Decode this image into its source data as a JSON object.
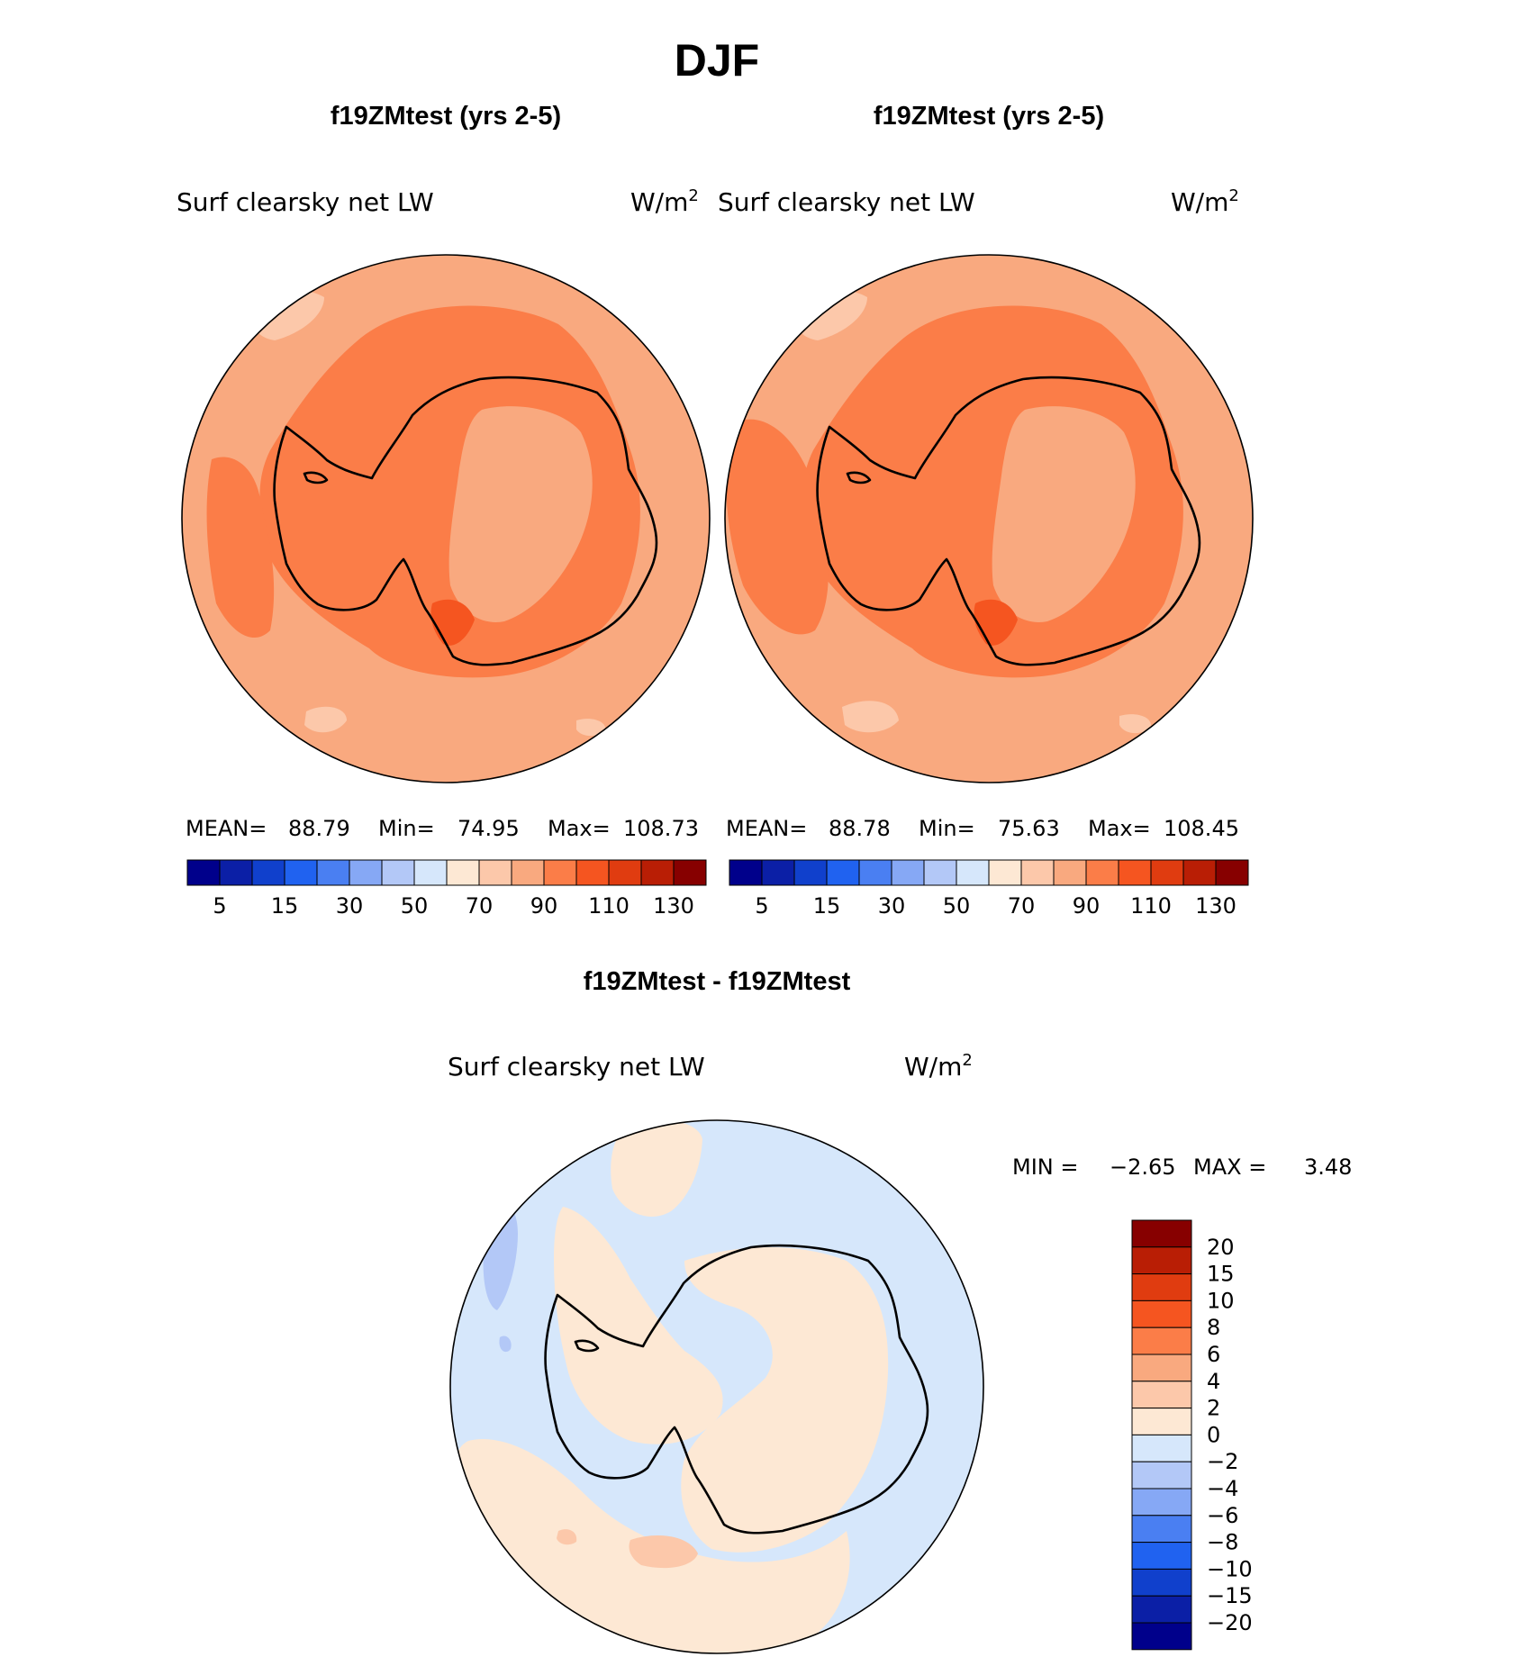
{
  "figure": {
    "season": "DJF",
    "colors": {
      "pos_cbar": [
        "#00008b",
        "#0b1fa6",
        "#1040cc",
        "#2062f0",
        "#4a7ff2",
        "#86a8f5",
        "#b3c8f7",
        "#d6e7fb",
        "#fde8d4",
        "#fcc8aa",
        "#f9a97f",
        "#fb7d48",
        "#f55520",
        "#e03c10",
        "#b91e05",
        "#870000"
      ],
      "diff_cbar": [
        "#00008b",
        "#0b1fa6",
        "#1040cc",
        "#2062f0",
        "#4a7ff2",
        "#86a8f5",
        "#b3c8f7",
        "#d6e7fb",
        "#fde8d4",
        "#fcc8aa",
        "#f9a97f",
        "#fb7d48",
        "#f55520",
        "#e03c10",
        "#b91e05",
        "#870000"
      ],
      "map_base": "#f9a97f",
      "map_mid": "#fb7d48",
      "map_high": "#f55520",
      "map_low": "#fcc8aa",
      "diff_base": "#d6e7fb",
      "diff_pos": "#fde8d4",
      "diff_pos2": "#fcc8aa",
      "diff_neg": "#b3c8f7"
    }
  },
  "chart_data": [
    {
      "type": "heatmap",
      "title": "f19ZMtest (yrs 2-5)",
      "variable": "Surf clearsky net LW",
      "units": "W/m",
      "units_sup": "2",
      "projection": "south polar stereographic",
      "stats": {
        "mean_label": "MEAN=",
        "mean": "88.79",
        "min_label": "Min=",
        "min": "74.95",
        "max_label": "Max=",
        "max": "108.73"
      },
      "colorbar_ticks": [
        "5",
        "15",
        "30",
        "50",
        "70",
        "90",
        "110",
        "130"
      ]
    },
    {
      "type": "heatmap",
      "title": "f19ZMtest (yrs 2-5)",
      "variable": "Surf clearsky net LW",
      "units": "W/m",
      "units_sup": "2",
      "projection": "south polar stereographic",
      "stats": {
        "mean_label": "MEAN=",
        "mean": "88.78",
        "min_label": "Min=",
        "min": "75.63",
        "max_label": "Max=",
        "max": "108.45"
      },
      "colorbar_ticks": [
        "5",
        "15",
        "30",
        "50",
        "70",
        "90",
        "110",
        "130"
      ]
    },
    {
      "type": "heatmap",
      "title": "f19ZMtest - f19ZMtest",
      "variable": "Surf clearsky net LW",
      "units": "W/m",
      "units_sup": "2",
      "projection": "south polar stereographic",
      "stats": {
        "min_label": "MIN =",
        "min": "−2.65",
        "max_label": "MAX =",
        "max": "3.48"
      },
      "colorbar_ticks": [
        "20",
        "15",
        "10",
        "8",
        "6",
        "4",
        "2",
        "0",
        "−2",
        "−4",
        "−6",
        "−8",
        "−10",
        "−15",
        "−20"
      ]
    }
  ]
}
